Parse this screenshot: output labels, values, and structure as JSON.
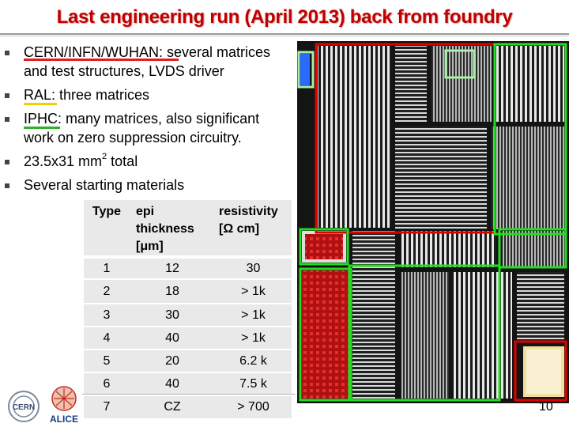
{
  "slide": {
    "title": "Last engineering run (April 2013) back from foundry",
    "page_number": "10"
  },
  "bullets": [
    {
      "lines": [
        "CERN/INFN/WUHAN: several matrices",
        "and test structures, LVDS driver"
      ]
    },
    {
      "lines": [
        "RAL: three matrices"
      ]
    },
    {
      "lines": [
        "IPHC: many matrices, also significant",
        "work on zero suppression circuitry."
      ]
    },
    {
      "lines": [
        "23.5x31 mm",
        "2",
        " total"
      ]
    },
    {
      "lines": [
        "Several starting materials"
      ]
    }
  ],
  "table": {
    "headers": {
      "type": "Type",
      "epi_1": "epi",
      "epi_2": "thickness",
      "epi_3": "[μm]",
      "res_1": "resistivity",
      "res_2": "[Ω cm]"
    },
    "rows": [
      [
        "1",
        "12",
        "30"
      ],
      [
        "2",
        "18",
        "> 1k"
      ],
      [
        "3",
        "30",
        "> 1k"
      ],
      [
        "4",
        "40",
        "> 1k"
      ],
      [
        "5",
        "20",
        "6.2 k"
      ],
      [
        "6",
        "40",
        "7.5 k"
      ],
      [
        "7",
        "CZ",
        "> 700"
      ]
    ]
  },
  "logos": {
    "cern": "CERN",
    "alice": "ALICE"
  },
  "colors": {
    "title": "#c00000",
    "underline_red": "#e02020",
    "underline_yellow": "#f0d000",
    "underline_green": "#30b030",
    "frame_red": "#e00000",
    "frame_green": "#22dd22",
    "frame_lightgreen": "#a8f0a8"
  },
  "icons": [
    "bullet-square-icon",
    "cern-logo-icon",
    "alice-logo-icon",
    "chip-layout-image"
  ]
}
